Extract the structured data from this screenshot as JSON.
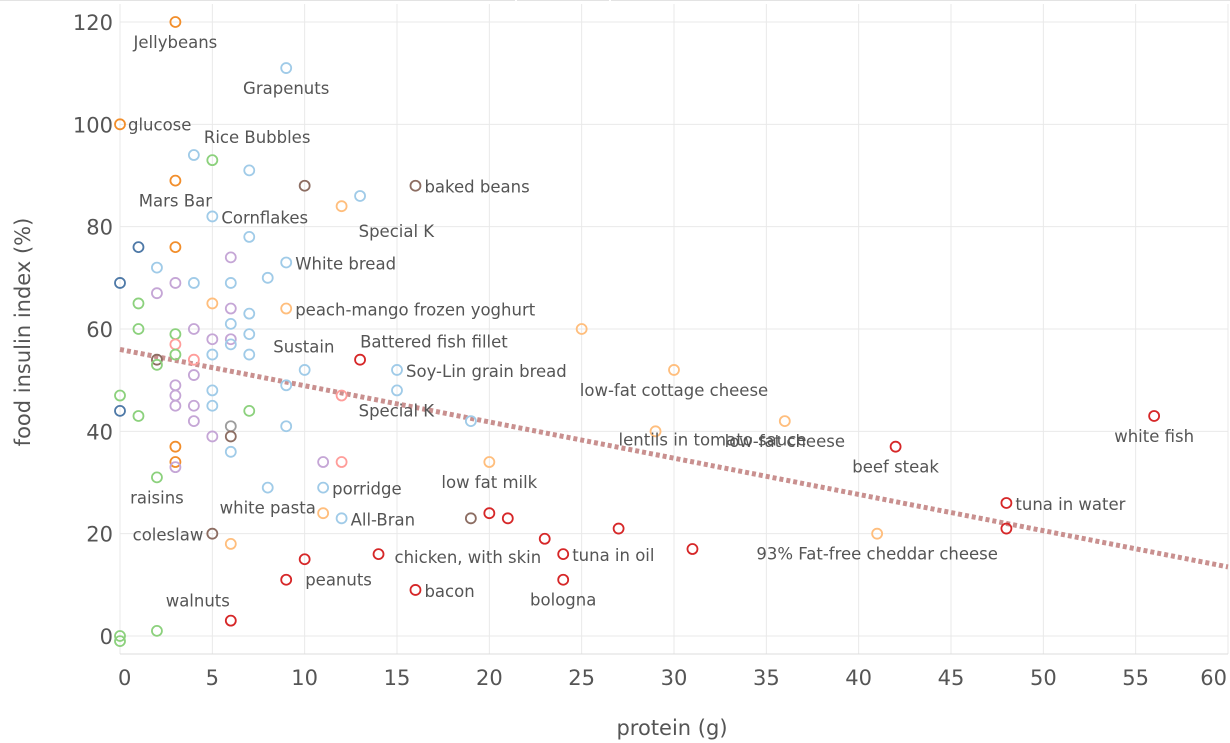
{
  "chart_data": {
    "type": "scatter",
    "title": "",
    "xlabel": "protein (g)",
    "ylabel": "food insulin index (%)",
    "xlim": [
      0,
      60
    ],
    "ylim": [
      -3,
      123
    ],
    "x_ticks": [
      0,
      5,
      10,
      15,
      20,
      25,
      30,
      35,
      40,
      45,
      50,
      55,
      60
    ],
    "y_ticks": [
      0,
      20,
      40,
      60,
      80,
      100,
      120
    ],
    "grid": true,
    "legend": "none",
    "trendline": {
      "style": "dotted",
      "color": "#c9908f",
      "x": [
        0,
        60
      ],
      "y": [
        56,
        13.5
      ]
    },
    "colors": {
      "orange": "#f28e2b",
      "light_blue": "#a0cbe8",
      "blue": "#4e79a7",
      "green": "#8cd17d",
      "purple": "#c5a6d6",
      "pink": "#ff9d9a",
      "light_orange": "#ffbe7d",
      "brown": "#8c6d62",
      "red": "#d62728",
      "gray": "#9d9d9d",
      "trend": "#c9908f"
    },
    "points": [
      {
        "x": 3,
        "y": 120,
        "color": "orange",
        "label": "Jellybeans"
      },
      {
        "x": 9,
        "y": 111,
        "color": "light_blue",
        "label": "Grapenuts"
      },
      {
        "x": 0,
        "y": 100,
        "color": "orange",
        "label": "glucose"
      },
      {
        "x": 4,
        "y": 94,
        "color": "light_blue",
        "label": "Rice Bubbles"
      },
      {
        "x": 5,
        "y": 93,
        "color": "green",
        "label": ""
      },
      {
        "x": 7,
        "y": 91,
        "color": "light_blue",
        "label": ""
      },
      {
        "x": 3,
        "y": 89,
        "color": "orange",
        "label": "Mars Bar"
      },
      {
        "x": 10,
        "y": 88,
        "color": "brown",
        "label": ""
      },
      {
        "x": 16,
        "y": 88,
        "color": "brown",
        "label": "baked beans"
      },
      {
        "x": 13,
        "y": 86,
        "color": "light_blue",
        "label": ""
      },
      {
        "x": 12,
        "y": 84,
        "color": "light_orange",
        "label": "Special K"
      },
      {
        "x": 5,
        "y": 82,
        "color": "light_blue",
        "label": "Cornflakes"
      },
      {
        "x": 7,
        "y": 78,
        "color": "light_blue",
        "label": ""
      },
      {
        "x": 1,
        "y": 76,
        "color": "blue",
        "label": ""
      },
      {
        "x": 3,
        "y": 76,
        "color": "orange",
        "label": ""
      },
      {
        "x": 6,
        "y": 74,
        "color": "purple",
        "label": ""
      },
      {
        "x": 9,
        "y": 73,
        "color": "light_blue",
        "label": "White bread"
      },
      {
        "x": 2,
        "y": 72,
        "color": "light_blue",
        "label": ""
      },
      {
        "x": 8,
        "y": 70,
        "color": "light_blue",
        "label": ""
      },
      {
        "x": 0,
        "y": 69,
        "color": "blue",
        "label": ""
      },
      {
        "x": 3,
        "y": 69,
        "color": "purple",
        "label": ""
      },
      {
        "x": 4,
        "y": 69,
        "color": "light_blue",
        "label": ""
      },
      {
        "x": 6,
        "y": 69,
        "color": "light_blue",
        "label": ""
      },
      {
        "x": 2,
        "y": 67,
        "color": "purple",
        "label": ""
      },
      {
        "x": 1,
        "y": 65,
        "color": "green",
        "label": ""
      },
      {
        "x": 5,
        "y": 65,
        "color": "light_orange",
        "label": ""
      },
      {
        "x": 6,
        "y": 64,
        "color": "purple",
        "label": ""
      },
      {
        "x": 9,
        "y": 64,
        "color": "light_orange",
        "label": "peach-mango frozen yoghurt"
      },
      {
        "x": 7,
        "y": 63,
        "color": "light_blue",
        "label": ""
      },
      {
        "x": 6,
        "y": 61,
        "color": "light_blue",
        "label": ""
      },
      {
        "x": 1,
        "y": 60,
        "color": "green",
        "label": ""
      },
      {
        "x": 4,
        "y": 60,
        "color": "purple",
        "label": ""
      },
      {
        "x": 25,
        "y": 60,
        "color": "light_orange",
        "label": ""
      },
      {
        "x": 3,
        "y": 59,
        "color": "green",
        "label": ""
      },
      {
        "x": 7,
        "y": 59,
        "color": "light_blue",
        "label": ""
      },
      {
        "x": 5,
        "y": 58,
        "color": "purple",
        "label": ""
      },
      {
        "x": 6,
        "y": 58,
        "color": "purple",
        "label": ""
      },
      {
        "x": 3,
        "y": 57,
        "color": "pink",
        "label": ""
      },
      {
        "x": 6,
        "y": 57,
        "color": "light_blue",
        "label": ""
      },
      {
        "x": 3,
        "y": 55,
        "color": "green",
        "label": ""
      },
      {
        "x": 5,
        "y": 55,
        "color": "light_blue",
        "label": ""
      },
      {
        "x": 7,
        "y": 55,
        "color": "light_blue",
        "label": "Sustain"
      },
      {
        "x": 2,
        "y": 54,
        "color": "brown",
        "label": ""
      },
      {
        "x": 4,
        "y": 54,
        "color": "pink",
        "label": ""
      },
      {
        "x": 13,
        "y": 54,
        "color": "red",
        "label": "Battered fish fillet"
      },
      {
        "x": 2,
        "y": 53,
        "color": "green",
        "label": ""
      },
      {
        "x": 10,
        "y": 52,
        "color": "light_blue",
        "label": ""
      },
      {
        "x": 15,
        "y": 52,
        "color": "light_blue",
        "label": "Soy-Lin grain bread"
      },
      {
        "x": 30,
        "y": 52,
        "color": "light_orange",
        "label": "low-fat cottage cheese"
      },
      {
        "x": 4,
        "y": 51,
        "color": "purple",
        "label": ""
      },
      {
        "x": 3,
        "y": 49,
        "color": "purple",
        "label": ""
      },
      {
        "x": 9,
        "y": 49,
        "color": "light_blue",
        "label": ""
      },
      {
        "x": 5,
        "y": 48,
        "color": "light_blue",
        "label": ""
      },
      {
        "x": 15,
        "y": 48,
        "color": "light_blue",
        "label": ""
      },
      {
        "x": 0,
        "y": 47,
        "color": "green",
        "label": ""
      },
      {
        "x": 3,
        "y": 47,
        "color": "purple",
        "label": ""
      },
      {
        "x": 12,
        "y": 47,
        "color": "pink",
        "label": "Special K"
      },
      {
        "x": 3,
        "y": 45,
        "color": "purple",
        "label": ""
      },
      {
        "x": 4,
        "y": 45,
        "color": "purple",
        "label": ""
      },
      {
        "x": 5,
        "y": 45,
        "color": "light_blue",
        "label": ""
      },
      {
        "x": 0,
        "y": 44,
        "color": "blue",
        "label": ""
      },
      {
        "x": 7,
        "y": 44,
        "color": "green",
        "label": ""
      },
      {
        "x": 1,
        "y": 43,
        "color": "green",
        "label": ""
      },
      {
        "x": 56,
        "y": 43,
        "color": "red",
        "label": "white fish"
      },
      {
        "x": 4,
        "y": 42,
        "color": "purple",
        "label": ""
      },
      {
        "x": 19,
        "y": 42,
        "color": "light_blue",
        "label": ""
      },
      {
        "x": 36,
        "y": 42,
        "color": "light_orange",
        "label": "low-fat cheese"
      },
      {
        "x": 6,
        "y": 41,
        "color": "gray",
        "label": ""
      },
      {
        "x": 9,
        "y": 41,
        "color": "light_blue",
        "label": ""
      },
      {
        "x": 29,
        "y": 40,
        "color": "light_orange",
        "label": "lentils in tomato sauce"
      },
      {
        "x": 5,
        "y": 39,
        "color": "purple",
        "label": ""
      },
      {
        "x": 6,
        "y": 39,
        "color": "brown",
        "label": ""
      },
      {
        "x": 3,
        "y": 37,
        "color": "orange",
        "label": ""
      },
      {
        "x": 42,
        "y": 37,
        "color": "red",
        "label": "beef steak"
      },
      {
        "x": 6,
        "y": 36,
        "color": "light_blue",
        "label": ""
      },
      {
        "x": 3,
        "y": 34,
        "color": "orange",
        "label": ""
      },
      {
        "x": 11,
        "y": 34,
        "color": "purple",
        "label": ""
      },
      {
        "x": 12,
        "y": 34,
        "color": "pink",
        "label": ""
      },
      {
        "x": 20,
        "y": 34,
        "color": "light_orange",
        "label": "low fat milk"
      },
      {
        "x": 3,
        "y": 33,
        "color": "purple",
        "label": ""
      },
      {
        "x": 2,
        "y": 31,
        "color": "green",
        "label": "raisins"
      },
      {
        "x": 8,
        "y": 29,
        "color": "light_blue",
        "label": "white pasta"
      },
      {
        "x": 11,
        "y": 29,
        "color": "light_blue",
        "label": "porridge"
      },
      {
        "x": 48,
        "y": 26,
        "color": "red",
        "label": "tuna in water"
      },
      {
        "x": 11,
        "y": 24,
        "color": "light_orange",
        "label": ""
      },
      {
        "x": 20,
        "y": 24,
        "color": "red",
        "label": ""
      },
      {
        "x": 12,
        "y": 23,
        "color": "light_blue",
        "label": "All-Bran"
      },
      {
        "x": 19,
        "y": 23,
        "color": "brown",
        "label": ""
      },
      {
        "x": 21,
        "y": 23,
        "color": "red",
        "label": ""
      },
      {
        "x": 27,
        "y": 21,
        "color": "red",
        "label": ""
      },
      {
        "x": 48,
        "y": 21,
        "color": "red",
        "label": ""
      },
      {
        "x": 5,
        "y": 20,
        "color": "brown",
        "label": "coleslaw"
      },
      {
        "x": 41,
        "y": 20,
        "color": "light_orange",
        "label": "93% Fat-free cheddar cheese"
      },
      {
        "x": 23,
        "y": 19,
        "color": "red",
        "label": ""
      },
      {
        "x": 6,
        "y": 18,
        "color": "light_orange",
        "label": ""
      },
      {
        "x": 31,
        "y": 17,
        "color": "red",
        "label": ""
      },
      {
        "x": 14,
        "y": 16,
        "color": "red",
        "label": "chicken, with skin"
      },
      {
        "x": 24,
        "y": 16,
        "color": "red",
        "label": "tuna in oil"
      },
      {
        "x": 10,
        "y": 15,
        "color": "red",
        "label": ""
      },
      {
        "x": 9,
        "y": 11,
        "color": "red",
        "label": "peanuts"
      },
      {
        "x": 24,
        "y": 11,
        "color": "red",
        "label": "bologna"
      },
      {
        "x": 16,
        "y": 9,
        "color": "red",
        "label": "bacon"
      },
      {
        "x": 6,
        "y": 3,
        "color": "red",
        "label": "walnuts"
      },
      {
        "x": 2,
        "y": 1,
        "color": "green",
        "label": ""
      },
      {
        "x": 0,
        "y": 0,
        "color": "green",
        "label": ""
      },
      {
        "x": 0,
        "y": -1,
        "color": "green",
        "label": ""
      }
    ]
  }
}
